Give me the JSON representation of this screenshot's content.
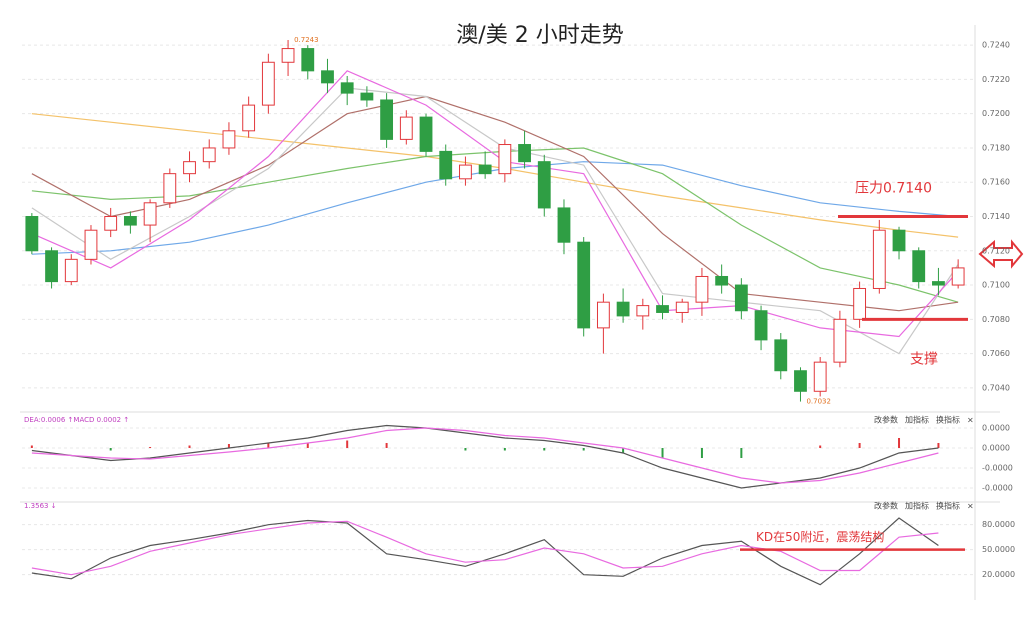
{
  "chart_data": [
    {
      "type": "candlestick",
      "title": "澳/美 2 小时走势",
      "ylim": [
        0.703,
        0.725
      ],
      "yticks": [
        {
          "value": 0.704,
          "label": "0.7040"
        },
        {
          "value": 0.706,
          "label": "0.7060"
        },
        {
          "value": 0.708,
          "label": "0.7080"
        },
        {
          "value": 0.71,
          "label": "0.7100"
        },
        {
          "value": 0.712,
          "label": "0.7120"
        },
        {
          "value": 0.714,
          "label": "0.7140"
        },
        {
          "value": 0.716,
          "label": "0.7160"
        },
        {
          "value": 0.718,
          "label": "0.7180"
        },
        {
          "value": 0.72,
          "label": "0.7200"
        },
        {
          "value": 0.722,
          "label": "0.7220"
        },
        {
          "value": 0.724,
          "label": "0.7240"
        }
      ],
      "up_color": "#e2373b",
      "down_color": "#2f9e44",
      "ohlc": [
        [
          0.714,
          0.7142,
          0.7118,
          0.712
        ],
        [
          0.712,
          0.7122,
          0.7098,
          0.7102
        ],
        [
          0.7102,
          0.7118,
          0.71,
          0.7115
        ],
        [
          0.7115,
          0.7135,
          0.7112,
          0.7132
        ],
        [
          0.7132,
          0.7145,
          0.7128,
          0.714
        ],
        [
          0.714,
          0.7143,
          0.713,
          0.7135
        ],
        [
          0.7135,
          0.715,
          0.7125,
          0.7148
        ],
        [
          0.7148,
          0.7168,
          0.7145,
          0.7165
        ],
        [
          0.7165,
          0.7178,
          0.716,
          0.7172
        ],
        [
          0.7172,
          0.7185,
          0.7168,
          0.718
        ],
        [
          0.718,
          0.7195,
          0.7176,
          0.719
        ],
        [
          0.719,
          0.721,
          0.7186,
          0.7205
        ],
        [
          0.7205,
          0.7235,
          0.72,
          0.723
        ],
        [
          0.723,
          0.7243,
          0.7222,
          0.7238
        ],
        [
          0.7238,
          0.724,
          0.722,
          0.7225
        ],
        [
          0.7225,
          0.7232,
          0.7212,
          0.7218
        ],
        [
          0.7218,
          0.7222,
          0.7205,
          0.7212
        ],
        [
          0.7212,
          0.7216,
          0.7204,
          0.7208
        ],
        [
          0.7208,
          0.7212,
          0.718,
          0.7185
        ],
        [
          0.7185,
          0.7202,
          0.7182,
          0.7198
        ],
        [
          0.7198,
          0.72,
          0.7175,
          0.7178
        ],
        [
          0.7178,
          0.7182,
          0.7158,
          0.7162
        ],
        [
          0.7162,
          0.7175,
          0.7158,
          0.717
        ],
        [
          0.717,
          0.7178,
          0.7162,
          0.7165
        ],
        [
          0.7165,
          0.7185,
          0.716,
          0.7182
        ],
        [
          0.7182,
          0.719,
          0.7168,
          0.7172
        ],
        [
          0.7172,
          0.7176,
          0.714,
          0.7145
        ],
        [
          0.7145,
          0.715,
          0.7118,
          0.7125
        ],
        [
          0.7125,
          0.7128,
          0.707,
          0.7075
        ],
        [
          0.7075,
          0.7095,
          0.706,
          0.709
        ],
        [
          0.709,
          0.7098,
          0.7078,
          0.7082
        ],
        [
          0.7082,
          0.7092,
          0.7074,
          0.7088
        ],
        [
          0.7088,
          0.7094,
          0.708,
          0.7084
        ],
        [
          0.7084,
          0.7092,
          0.7078,
          0.709
        ],
        [
          0.709,
          0.711,
          0.7082,
          0.7105
        ],
        [
          0.7105,
          0.7112,
          0.7095,
          0.71
        ],
        [
          0.71,
          0.7104,
          0.708,
          0.7085
        ],
        [
          0.7085,
          0.7088,
          0.7062,
          0.7068
        ],
        [
          0.7068,
          0.7072,
          0.7045,
          0.705
        ],
        [
          0.705,
          0.7052,
          0.7032,
          0.7038
        ],
        [
          0.7038,
          0.7058,
          0.7035,
          0.7055
        ],
        [
          0.7055,
          0.7085,
          0.7052,
          0.708
        ],
        [
          0.708,
          0.7102,
          0.7075,
          0.7098
        ],
        [
          0.7098,
          0.7138,
          0.7095,
          0.7132
        ],
        [
          0.7132,
          0.7134,
          0.7115,
          0.712
        ],
        [
          0.712,
          0.7122,
          0.7098,
          0.7102
        ],
        [
          0.7102,
          0.711,
          0.7094,
          0.71
        ],
        [
          0.71,
          0.7115,
          0.7098,
          0.711
        ]
      ],
      "x": [
        0,
        4,
        8,
        12,
        16,
        20,
        24,
        28,
        32,
        36,
        40,
        44,
        47
      ],
      "series": [
        {
          "color": "#f4c26a",
          "values": [
            0.72,
            0.7195,
            0.719,
            0.7185,
            0.718,
            0.7175,
            0.7168,
            0.716,
            0.7152,
            0.7145,
            0.7138,
            0.7132,
            0.7128
          ]
        },
        {
          "color": "#6fa8e8",
          "values": [
            0.7118,
            0.712,
            0.7125,
            0.7135,
            0.7148,
            0.716,
            0.7168,
            0.7172,
            0.717,
            0.7158,
            0.7148,
            0.7143,
            0.714
          ]
        },
        {
          "color": "#7cc36b",
          "values": [
            0.7155,
            0.715,
            0.7152,
            0.716,
            0.7168,
            0.7175,
            0.7178,
            0.718,
            0.7165,
            0.7135,
            0.711,
            0.71,
            0.709
          ]
        },
        {
          "color": "#b0706a",
          "values": [
            0.7165,
            0.714,
            0.715,
            0.717,
            0.72,
            0.721,
            0.7195,
            0.7175,
            0.713,
            0.7095,
            0.709,
            0.7085,
            0.709
          ]
        },
        {
          "color": "#c8c8c8",
          "values": [
            0.7145,
            0.7115,
            0.714,
            0.7168,
            0.7215,
            0.721,
            0.718,
            0.717,
            0.7095,
            0.709,
            0.7085,
            0.706,
            0.7112
          ]
        },
        {
          "color": "#e86ae0",
          "values": [
            0.713,
            0.711,
            0.7138,
            0.7175,
            0.7225,
            0.7205,
            0.7172,
            0.7165,
            0.7085,
            0.7088,
            0.7075,
            0.707,
            0.7108
          ]
        }
      ],
      "high_label": "0.7243",
      "low_label": "0.7032",
      "annotations": [
        {
          "text": "压力0.7140",
          "value": 0.714,
          "color": "#e2373b"
        },
        {
          "text": "支撑",
          "value": 0.708,
          "color": "#e2373b"
        }
      ]
    },
    {
      "type": "macd",
      "legend_text": "DEA:0.0006 ↑MACD 0.0002 ↑",
      "buttons": [
        "改参数",
        "加指标",
        "换指标",
        "×"
      ],
      "ylim": [
        -0.0001,
        5e-05
      ],
      "yticks": [
        {
          "value": 4e-05,
          "label": "0.0000"
        },
        {
          "value": 0,
          "label": "0.0000"
        },
        {
          "value": -4e-05,
          "label": "-0.0000"
        },
        {
          "value": -8e-05,
          "label": "-0.0000"
        }
      ],
      "x": [
        0,
        2,
        4,
        6,
        8,
        10,
        12,
        14,
        16,
        18,
        20,
        22,
        24,
        26,
        28,
        30,
        32,
        34,
        36,
        38,
        40,
        42,
        44,
        46
      ],
      "histogram": [
        5e-06,
        0,
        -5e-06,
        2e-06,
        5e-06,
        8e-06,
        1e-05,
        1e-05,
        1.5e-05,
        1e-05,
        0,
        -5e-06,
        -5e-06,
        -5e-06,
        -5e-06,
        -1e-05,
        -2e-05,
        -2e-05,
        -2e-05,
        0,
        5e-06,
        1e-05,
        2e-05,
        1e-05
      ],
      "series": [
        {
          "color": "#555555",
          "values": [
            -5e-06,
            -1.5e-05,
            -2.5e-05,
            -2e-05,
            -1e-05,
            0,
            1e-05,
            2e-05,
            3.5e-05,
            4.5e-05,
            4e-05,
            3e-05,
            2e-05,
            1.5e-05,
            5e-06,
            -1e-05,
            -4e-05,
            -6e-05,
            -8e-05,
            -7e-05,
            -6e-05,
            -4e-05,
            -1e-05,
            0
          ]
        },
        {
          "color": "#e86ae0",
          "values": [
            -1e-05,
            -1.5e-05,
            -2e-05,
            -2.2e-05,
            -1.5e-05,
            -8e-06,
            0,
            1e-05,
            2e-05,
            3.5e-05,
            4e-05,
            3.5e-05,
            2.5e-05,
            2e-05,
            1e-05,
            0,
            -2e-05,
            -4e-05,
            -6e-05,
            -7e-05,
            -6.5e-05,
            -5e-05,
            -3e-05,
            -1e-05
          ]
        }
      ]
    },
    {
      "type": "kd",
      "legend_text": "1.3563 ↓",
      "buttons": [
        "改参数",
        "加指标",
        "换指标",
        "×"
      ],
      "ylim": [
        4,
        100
      ],
      "yticks": [
        {
          "value": 80,
          "label": "80.0000"
        },
        {
          "value": 50,
          "label": "50.0000"
        },
        {
          "value": 20,
          "label": "20.0000"
        }
      ],
      "x": [
        0,
        2,
        4,
        6,
        8,
        10,
        12,
        14,
        16,
        18,
        20,
        22,
        24,
        26,
        28,
        30,
        32,
        34,
        36,
        38,
        40,
        42,
        44,
        46
      ],
      "series": [
        {
          "color": "#555555",
          "values": [
            22,
            15,
            40,
            55,
            62,
            70,
            80,
            85,
            82,
            45,
            38,
            30,
            45,
            62,
            20,
            18,
            40,
            55,
            60,
            30,
            8,
            45,
            88,
            55
          ]
        },
        {
          "color": "#e86ae0",
          "values": [
            28,
            20,
            30,
            48,
            58,
            68,
            75,
            82,
            84,
            65,
            45,
            35,
            38,
            52,
            45,
            28,
            30,
            45,
            55,
            48,
            25,
            25,
            65,
            70
          ]
        }
      ],
      "annotation": {
        "text": "KD在50附近，震荡结构",
        "value": 50,
        "color": "#e2373b"
      }
    }
  ]
}
